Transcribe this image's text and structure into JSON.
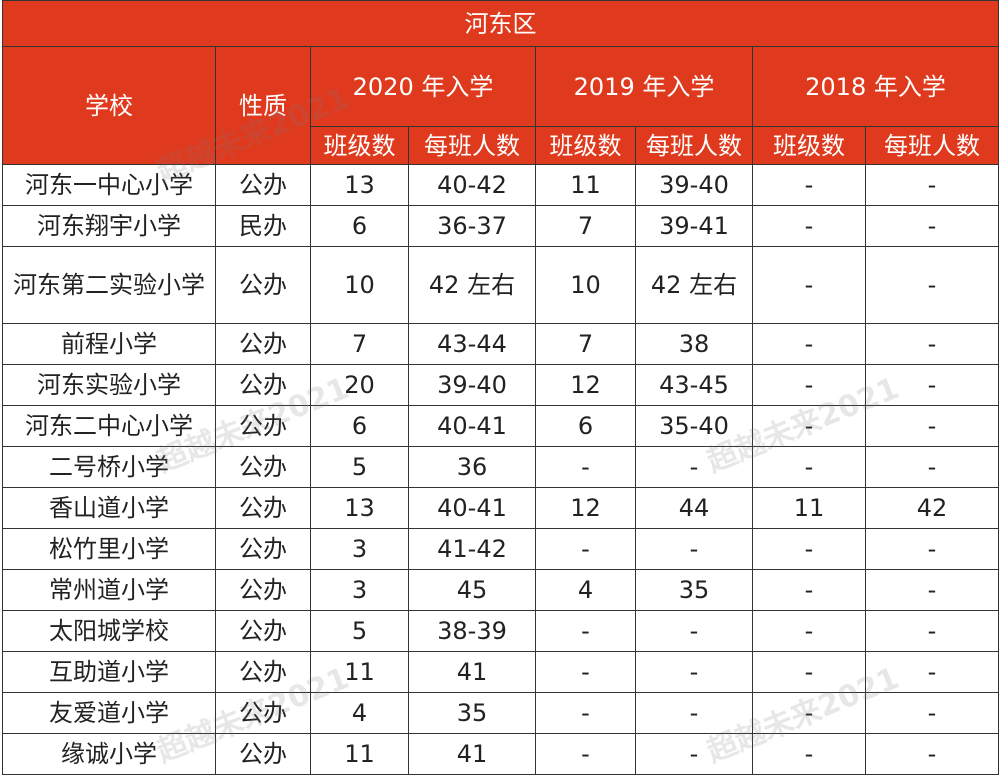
{
  "title": "河东区",
  "header": {
    "school": "学校",
    "nature": "性质",
    "years": [
      "2020 年入学",
      "2019 年入学",
      "2018 年入学"
    ],
    "sub": [
      "班级数",
      "每班人数",
      "班级数",
      "每班人数",
      "班级数",
      "每班人数"
    ]
  },
  "table": {
    "rows": [
      [
        "河东一中心小学",
        "公办",
        13,
        "40-42",
        11,
        "39-40",
        "-",
        "-"
      ],
      [
        "河东翔宇小学",
        "民办",
        6,
        "36-37",
        7,
        "39-41",
        "-",
        "-"
      ],
      [
        "河东第二实验小学",
        "公办",
        10,
        "42 左右",
        10,
        "42 左右",
        "-",
        "-"
      ],
      [
        "前程小学",
        "公办",
        7,
        "43-44",
        7,
        38,
        "-",
        "-"
      ],
      [
        "河东实验小学",
        "公办",
        20,
        "39-40",
        12,
        "43-45",
        "-",
        "-"
      ],
      [
        "河东二中心小学",
        "公办",
        6,
        "40-41",
        6,
        "35-40",
        "-",
        "-"
      ],
      [
        "二号桥小学",
        "公办",
        5,
        36,
        "-",
        "-",
        "-",
        "-"
      ],
      [
        "香山道小学",
        "公办",
        13,
        "40-41",
        12,
        44,
        11,
        42
      ],
      [
        "松竹里小学",
        "公办",
        3,
        "41-42",
        "-",
        "-",
        "-",
        "-"
      ],
      [
        "常州道小学",
        "公办",
        3,
        45,
        4,
        35,
        "-",
        "-"
      ],
      [
        "太阳城学校",
        "公办",
        5,
        "38-39",
        "-",
        "-",
        "-",
        "-"
      ],
      [
        "互助道小学",
        "公办",
        11,
        41,
        "-",
        "-",
        "-",
        "-"
      ],
      [
        "友爱道小学",
        "公办",
        4,
        35,
        "-",
        "-",
        "-",
        "-"
      ],
      [
        "缘诚小学",
        "公办",
        11,
        41,
        "-",
        "-",
        "-",
        "-"
      ]
    ]
  },
  "watermarks": [
    "超越未来2021",
    "超越未来2021",
    "超越未来2021",
    "超越未来2021",
    "超越未来2021"
  ]
}
